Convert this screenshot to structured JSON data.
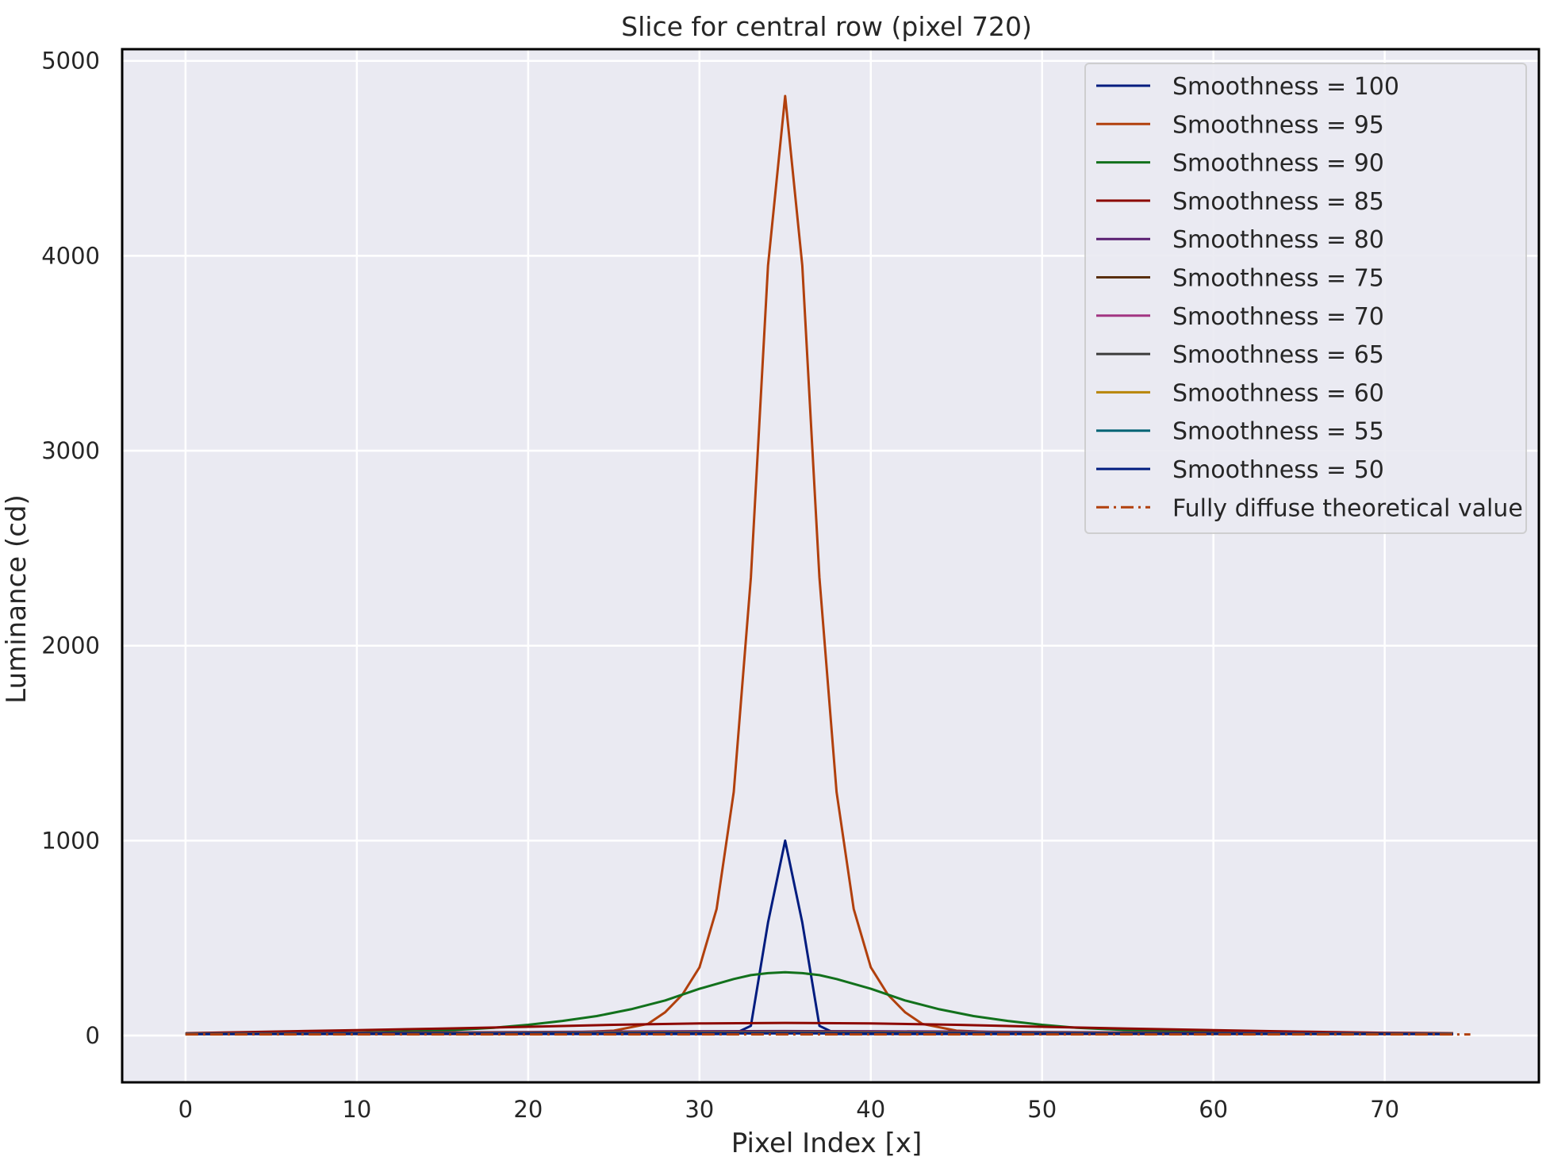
{
  "chart_data": {
    "type": "line",
    "title": "Slice for central row (pixel 720)",
    "xlabel": "Pixel Index [x]",
    "ylabel": "Luminance (cd)",
    "xlim": [
      -3.7,
      79
    ],
    "ylim": [
      -240,
      5060
    ],
    "xticks": [
      0,
      10,
      20,
      30,
      40,
      50,
      60,
      70
    ],
    "yticks": [
      0,
      1000,
      2000,
      3000,
      4000,
      5000
    ],
    "grid": true,
    "legend_position": "top-right",
    "series": [
      {
        "name": "Smoothness = 100",
        "color": "#001c7f",
        "style": "solid",
        "x": [
          0,
          32,
          33,
          34,
          35,
          36,
          37,
          38,
          74
        ],
        "y": [
          8,
          8,
          50,
          580,
          1000,
          580,
          50,
          8,
          8
        ]
      },
      {
        "name": "Smoothness = 95",
        "color": "#b1400d",
        "style": "solid",
        "x": [
          0,
          20,
          25,
          27,
          28,
          29,
          30,
          31,
          32,
          33,
          34,
          35,
          36,
          37,
          38,
          39,
          40,
          41,
          42,
          43,
          45,
          50,
          74
        ],
        "y": [
          8,
          8,
          25,
          60,
          120,
          210,
          350,
          650,
          1250,
          2350,
          3950,
          4820,
          3950,
          2350,
          1250,
          650,
          350,
          210,
          120,
          60,
          25,
          8,
          8
        ]
      },
      {
        "name": "Smoothness = 90",
        "color": "#12711c",
        "style": "solid",
        "x": [
          0,
          5,
          10,
          15,
          18,
          20,
          22,
          24,
          26,
          28,
          30,
          32,
          33,
          34,
          35,
          36,
          37,
          38,
          40,
          42,
          44,
          46,
          48,
          50,
          52,
          55,
          60,
          65,
          70,
          74
        ],
        "y": [
          10,
          12,
          15,
          25,
          40,
          55,
          75,
          100,
          135,
          180,
          240,
          290,
          310,
          320,
          325,
          320,
          310,
          290,
          240,
          180,
          135,
          100,
          75,
          55,
          40,
          28,
          18,
          14,
          11,
          10
        ]
      },
      {
        "name": "Smoothness = 85",
        "color": "#8c0800",
        "style": "solid",
        "x": [
          0,
          5,
          10,
          15,
          20,
          25,
          30,
          35,
          40,
          45,
          50,
          55,
          60,
          65,
          70,
          74
        ],
        "y": [
          12,
          20,
          28,
          36,
          45,
          55,
          62,
          65,
          62,
          55,
          45,
          36,
          28,
          20,
          14,
          12
        ]
      },
      {
        "name": "Smoothness = 80",
        "color": "#591e71",
        "style": "solid",
        "x": [
          0,
          10,
          20,
          30,
          35,
          40,
          50,
          60,
          74
        ],
        "y": [
          10,
          14,
          18,
          22,
          23,
          22,
          18,
          14,
          10
        ]
      },
      {
        "name": "Smoothness = 75",
        "color": "#592f0d",
        "style": "solid",
        "x": [
          0,
          10,
          20,
          30,
          35,
          40,
          50,
          60,
          74
        ],
        "y": [
          10,
          13,
          16,
          19,
          20,
          19,
          16,
          13,
          10
        ]
      },
      {
        "name": "Smoothness = 70",
        "color": "#a23582",
        "style": "solid",
        "x": [
          0,
          10,
          20,
          30,
          35,
          40,
          50,
          60,
          74
        ],
        "y": [
          10,
          12,
          15,
          17,
          18,
          17,
          15,
          12,
          10
        ]
      },
      {
        "name": "Smoothness = 65",
        "color": "#3c3c3c",
        "style": "solid",
        "x": [
          0,
          10,
          20,
          30,
          35,
          40,
          50,
          60,
          74
        ],
        "y": [
          9,
          11,
          13,
          15,
          16,
          15,
          13,
          11,
          9
        ]
      },
      {
        "name": "Smoothness = 60",
        "color": "#b8850a",
        "style": "solid",
        "x": [
          0,
          10,
          20,
          30,
          35,
          40,
          50,
          60,
          74
        ],
        "y": [
          9,
          10,
          12,
          14,
          14,
          14,
          12,
          10,
          9
        ]
      },
      {
        "name": "Smoothness = 55",
        "color": "#006374",
        "style": "solid",
        "x": [
          0,
          10,
          20,
          30,
          35,
          40,
          50,
          60,
          74
        ],
        "y": [
          8,
          9,
          11,
          12,
          12,
          12,
          11,
          9,
          8
        ]
      },
      {
        "name": "Smoothness = 50",
        "color": "#001c7f",
        "style": "solid",
        "x": [
          0,
          10,
          20,
          30,
          35,
          40,
          50,
          60,
          74
        ],
        "y": [
          8,
          9,
          10,
          11,
          11,
          11,
          10,
          9,
          8
        ]
      },
      {
        "name": "Fully diffuse theoretical value",
        "color": "#b1400d",
        "style": "dashdot",
        "x": [
          0,
          75
        ],
        "y": [
          6,
          6
        ]
      }
    ]
  }
}
